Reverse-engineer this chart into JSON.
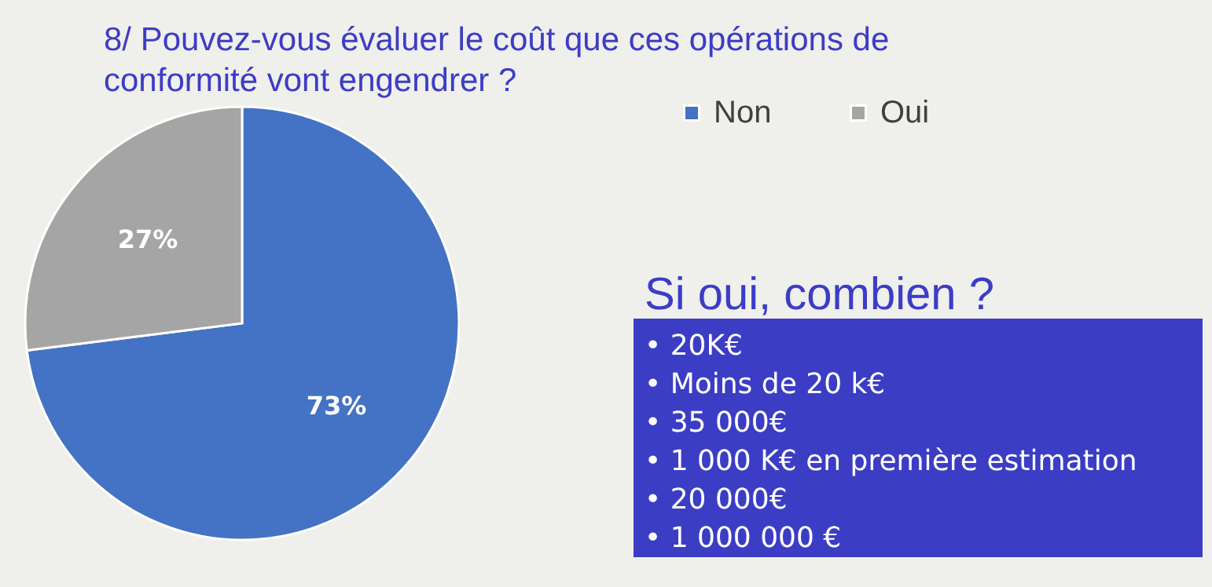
{
  "chart_data": {
    "type": "pie",
    "title": "8/ Pouvez-vous évaluer le coût que ces opérations de conformité vont engendrer ?",
    "categories": [
      "Non",
      "Oui"
    ],
    "values": [
      73,
      27
    ],
    "colors": [
      "#4472c4",
      "#a5a5a5"
    ],
    "value_labels": [
      "73%",
      "27%"
    ],
    "legend": "top right",
    "annotations": [
      "Si oui, combien ?",
      "•  20K€",
      "•  Moins de 20 k€",
      "•  35 000€",
      "•  1 000 K€ en première estimation",
      "•  20 000€",
      "•  1 000 000 €"
    ]
  }
}
